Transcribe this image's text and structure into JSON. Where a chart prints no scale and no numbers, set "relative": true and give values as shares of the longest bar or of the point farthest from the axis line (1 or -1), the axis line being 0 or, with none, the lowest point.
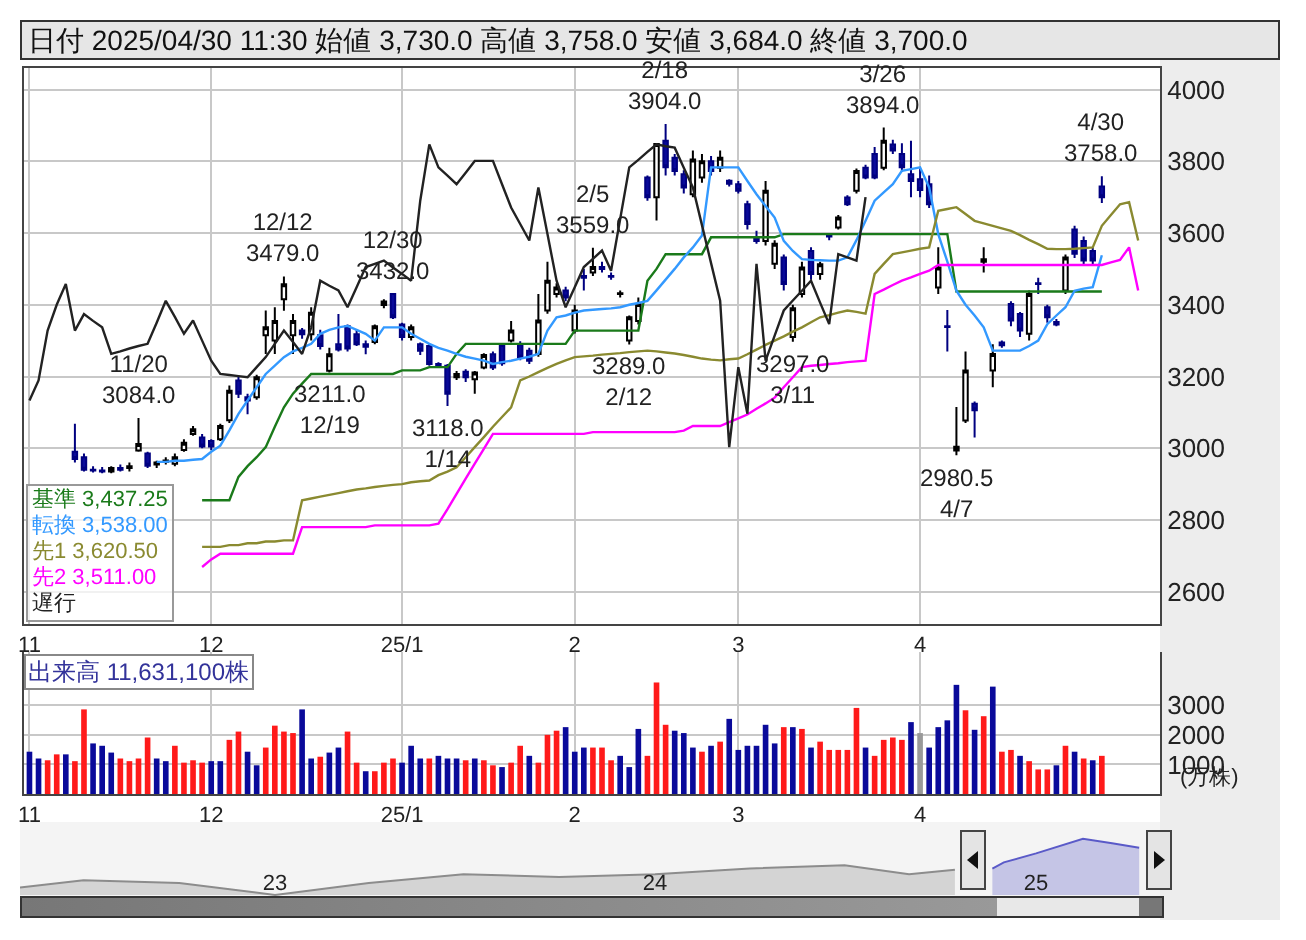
{
  "chart_data": [
    {
      "type": "candlestick",
      "title": "日付 2025/04/30 11:30 始値 3,730.0 高値 3,758.0 安値 3,684.0 終値 3,700.0",
      "categories": [
        "11",
        null,
        null,
        null,
        null,
        null,
        null,
        null,
        null,
        null,
        null,
        null,
        null,
        null,
        null,
        null,
        null,
        null,
        null,
        null,
        "12",
        null,
        null,
        null,
        null,
        null,
        null,
        null,
        null,
        null,
        null,
        null,
        null,
        null,
        null,
        null,
        null,
        null,
        null,
        null,
        null,
        "25/1",
        null,
        null,
        null,
        null,
        null,
        null,
        null,
        null,
        null,
        null,
        null,
        null,
        null,
        null,
        null,
        null,
        null,
        null,
        "2",
        null,
        null,
        null,
        null,
        null,
        null,
        null,
        null,
        null,
        null,
        null,
        null,
        null,
        null,
        null,
        null,
        null,
        "3",
        null,
        null,
        null,
        null,
        null,
        null,
        null,
        null,
        null,
        null,
        null,
        null,
        null,
        null,
        null,
        null,
        null,
        null,
        null,
        "4",
        null,
        null,
        null,
        null,
        null,
        null,
        null,
        null,
        null,
        null,
        null,
        null,
        null,
        null,
        null,
        null,
        null,
        null,
        null,
        null,
        null,
        null,
        null,
        null
      ],
      "ohlc": [
        null,
        null,
        null,
        null,
        null,
        [
          2990,
          3068,
          2960,
          2970
        ],
        [
          2975,
          2985,
          2935,
          2940
        ],
        [
          2940,
          2950,
          2932,
          2938
        ],
        [
          2938,
          2948,
          2930,
          2935
        ],
        [
          2935,
          2950,
          2930,
          2945
        ],
        [
          2945,
          2955,
          2935,
          2940
        ],
        [
          2945,
          2960,
          2935,
          2950
        ],
        [
          2994,
          3084,
          2990,
          3012
        ],
        [
          2985,
          2990,
          2945,
          2951
        ],
        [
          2955,
          2965,
          2945,
          2960
        ],
        [
          2962,
          2975,
          2955,
          2966
        ],
        [
          2957,
          2985,
          2950,
          2975
        ],
        [
          2995,
          3025,
          2990,
          3015
        ],
        [
          3040,
          3062,
          3035,
          3053
        ],
        [
          3030,
          3040,
          3000,
          3005
        ],
        [
          3020,
          3025,
          2995,
          3005
        ],
        [
          3025,
          3068,
          3020,
          3062
        ],
        [
          3078,
          3175,
          3070,
          3160
        ],
        [
          3189,
          3200,
          3140,
          3152
        ],
        [
          3142,
          3152,
          3095,
          3133
        ],
        [
          3142,
          3205,
          3135,
          3198
        ],
        [
          3315,
          3384,
          3263,
          3337
        ],
        [
          3300,
          3393,
          3263,
          3355
        ],
        [
          3415,
          3479,
          3383,
          3457
        ],
        [
          3315,
          3374,
          3263,
          3355
        ],
        [
          3328,
          3335,
          3305,
          3318
        ],
        [
          3318,
          3393,
          3300,
          3378
        ],
        [
          3315,
          3330,
          3275,
          3285
        ],
        [
          3216,
          3280,
          3211,
          3262
        ],
        [
          3290,
          3374,
          3270,
          3275
        ],
        [
          3340,
          3345,
          3270,
          3278
        ],
        [
          3318,
          3330,
          3285,
          3290
        ],
        [
          3290,
          3300,
          3262,
          3283
        ],
        [
          3296,
          3345,
          3290,
          3340
        ],
        [
          3399,
          3415,
          3390,
          3409
        ],
        [
          3430,
          3432,
          3360,
          3365
        ],
        [
          3345,
          3350,
          3300,
          3310
        ],
        [
          3310,
          3345,
          3300,
          3337
        ],
        [
          3290,
          3295,
          3260,
          3272
        ],
        [
          3285,
          3290,
          3230,
          3235
        ],
        [
          3235,
          3240,
          3225,
          3230
        ],
        [
          3230,
          3235,
          3118,
          3152
        ],
        [
          3198,
          3215,
          3190,
          3207
        ],
        [
          3213,
          3220,
          3185,
          3198
        ],
        [
          3192,
          3215,
          3152,
          3211
        ],
        [
          3225,
          3265,
          3220,
          3260
        ],
        [
          3262,
          3270,
          3218,
          3225
        ],
        [
          3285,
          3290,
          3230,
          3237
        ],
        [
          3300,
          3355,
          3295,
          3328
        ],
        [
          3290,
          3298,
          3245,
          3253
        ],
        [
          3272,
          3280,
          3235,
          3244
        ],
        [
          3263,
          3430,
          3255,
          3356
        ],
        [
          3384,
          3520,
          3375,
          3467
        ],
        [
          3430,
          3460,
          3420,
          3448
        ],
        [
          3440,
          3450,
          3410,
          3420
        ],
        [
          3328,
          3400,
          3320,
          3384
        ],
        [
          3480,
          3500,
          3440,
          3475
        ],
        [
          3490,
          3559,
          3480,
          3505
        ],
        [
          3505,
          3520,
          3490,
          3500
        ],
        [
          3480,
          3490,
          3470,
          3478
        ],
        [
          3430,
          3440,
          3420,
          3432
        ],
        [
          3300,
          3370,
          3289,
          3365
        ],
        [
          3355,
          3420,
          3345,
          3402
        ],
        [
          3755,
          3760,
          3690,
          3700
        ],
        [
          3700,
          3850,
          3635,
          3848
        ],
        [
          3857,
          3904,
          3760,
          3783
        ],
        [
          3810,
          3820,
          3760,
          3773
        ],
        [
          3764,
          3775,
          3710,
          3727
        ],
        [
          3708,
          3830,
          3700,
          3805
        ],
        [
          3755,
          3820,
          3740,
          3800
        ],
        [
          3800,
          3815,
          3760,
          3773
        ],
        [
          3782,
          3830,
          3770,
          3810
        ],
        [
          3746,
          3750,
          3730,
          3737
        ],
        [
          3736,
          3745,
          3710,
          3718
        ],
        [
          3680,
          3690,
          3610,
          3625
        ],
        [
          3588,
          3606,
          3570,
          3578
        ],
        [
          3578,
          3745,
          3565,
          3718
        ],
        [
          3514,
          3580,
          3500,
          3570
        ],
        [
          3532,
          3540,
          3440,
          3458
        ],
        [
          3310,
          3400,
          3297,
          3390
        ],
        [
          3430,
          3520,
          3420,
          3504
        ],
        [
          3550,
          3560,
          3470,
          3486
        ],
        [
          3486,
          3520,
          3470,
          3513
        ],
        [
          3594,
          3600,
          3580,
          3590
        ],
        [
          3615,
          3650,
          3610,
          3643
        ],
        [
          3699,
          3705,
          3675,
          3680
        ],
        [
          3718,
          3780,
          3710,
          3773
        ],
        [
          3782,
          3790,
          3750,
          3755
        ],
        [
          3820,
          3840,
          3750,
          3755
        ],
        [
          3782,
          3894,
          3775,
          3857
        ],
        [
          3847,
          3860,
          3820,
          3830
        ],
        [
          3820,
          3850,
          3770,
          3783
        ],
        [
          3764,
          3857,
          3700,
          3745
        ],
        [
          3750,
          3780,
          3700,
          3720
        ],
        [
          3736,
          3760,
          3670,
          3680
        ],
        [
          3448,
          3560,
          3430,
          3504
        ],
        [
          3340,
          3385,
          3270,
          3338
        ],
        [
          2994,
          3115,
          2980.5,
          3004
        ],
        [
          3077,
          3270,
          3070,
          3217
        ],
        [
          3124,
          3130,
          3030,
          3106
        ],
        [
          3520,
          3560,
          3490,
          3527
        ],
        [
          3217,
          3290,
          3170,
          3263
        ],
        [
          3295,
          3300,
          3280,
          3287
        ],
        [
          3402,
          3410,
          3340,
          3356
        ],
        [
          3374,
          3380,
          3310,
          3328
        ],
        [
          3319,
          3440,
          3300,
          3430
        ],
        [
          3460,
          3475,
          3430,
          3458
        ],
        [
          3393,
          3400,
          3350,
          3365
        ],
        [
          3352,
          3360,
          3340,
          3345
        ],
        [
          3440,
          3540,
          3430,
          3532
        ],
        [
          3610,
          3620,
          3530,
          3542
        ],
        [
          3578,
          3590,
          3510,
          3523
        ],
        [
          3550,
          3560,
          3510,
          3523
        ],
        [
          3730,
          3758,
          3684,
          3700
        ],
        null,
        null,
        null,
        null
      ],
      "series": [
        {
          "name": "基準 3,437.25",
          "type": "line",
          "color": "#1a7a1a",
          "values": [
            null,
            null,
            null,
            null,
            null,
            null,
            null,
            null,
            null,
            null,
            null,
            null,
            null,
            null,
            null,
            null,
            null,
            null,
            null,
            2855,
            2855,
            2855,
            2855,
            2920,
            2950,
            2975,
            3003,
            3060,
            3114,
            3152,
            3180,
            3207,
            3207,
            3207,
            3207,
            3207,
            3207,
            3207,
            3207,
            3207,
            3207,
            3217,
            3217,
            3217,
            3226,
            3226,
            3226,
            3263,
            3291,
            3291,
            3291,
            3291,
            3291,
            3291,
            3291,
            3291,
            3291,
            3291,
            3291,
            3291,
            3328,
            3328,
            3328,
            3328,
            3328,
            3328,
            3328,
            3328,
            3467,
            3500,
            3541,
            3541,
            3541,
            3541,
            3541,
            3588,
            3588,
            3588,
            3588,
            3588,
            3588,
            3588,
            3588,
            3597,
            3597,
            3597,
            3597,
            3597,
            3597,
            3597,
            3597,
            3597,
            3597,
            3597,
            3597,
            3597,
            3597,
            3597,
            3597,
            3597,
            3597,
            3597,
            3437,
            3437,
            3437,
            3437,
            3437,
            3437,
            3437,
            3437,
            3437,
            3437,
            3437,
            3437,
            3437,
            3437,
            3437,
            3437,
            3437,
            null,
            null,
            null,
            null
          ]
        },
        {
          "name": "転換 3,538.00",
          "type": "line",
          "color": "#3399ff",
          "values": [
            null,
            null,
            null,
            null,
            null,
            null,
            null,
            null,
            null,
            null,
            null,
            null,
            null,
            null,
            2962,
            2962,
            2965,
            2965,
            2968,
            2970,
            2990,
            3007,
            3050,
            3096,
            3133,
            3170,
            3207,
            3230,
            3254,
            3270,
            3280,
            3291,
            3319,
            3330,
            3337,
            3341,
            3330,
            3319,
            3300,
            3337,
            3337,
            3337,
            3319,
            3305,
            3291,
            3280,
            3272,
            3263,
            3255,
            3250,
            3244,
            3235,
            3240,
            3244,
            3250,
            3255,
            3263,
            3328,
            3365,
            3370,
            3378,
            3384,
            3386,
            3388,
            3390,
            3393,
            3400,
            3405,
            3411,
            3440,
            3470,
            3500,
            3532,
            3560,
            3593,
            3783,
            3783,
            3783,
            3783,
            3745,
            3708,
            3675,
            3643,
            3578,
            3550,
            3527,
            3525,
            3524,
            3523,
            3523,
            3532,
            3580,
            3634,
            3690,
            3713,
            3736,
            3773,
            3778,
            3783,
            3727,
            3597,
            3520,
            3439,
            3400,
            3370,
            3337,
            3272,
            3272,
            3272,
            3272,
            3285,
            3300,
            3346,
            3370,
            3393,
            3439,
            3445,
            3449,
            3538,
            null,
            null,
            null,
            null
          ]
        },
        {
          "name": "先1 3,620.50",
          "type": "line",
          "color": "#8a8a30",
          "values": [
            null,
            null,
            null,
            null,
            null,
            null,
            null,
            null,
            null,
            null,
            null,
            null,
            null,
            null,
            null,
            null,
            null,
            null,
            null,
            2725,
            2725,
            2725,
            2730,
            2730,
            2735,
            2735,
            2740,
            2740,
            2743,
            2743,
            2855,
            2860,
            2865,
            2870,
            2875,
            2880,
            2885,
            2888,
            2892,
            2895,
            2898,
            2900,
            2905,
            2908,
            2910,
            2925,
            2935,
            2947,
            2975,
            3003,
            3031,
            3060,
            3087,
            3114,
            3189,
            3200,
            3212,
            3224,
            3235,
            3245,
            3254,
            3256,
            3258,
            3261,
            3263,
            3265,
            3268,
            3270,
            3272,
            3270,
            3267,
            3264,
            3260,
            3255,
            3250,
            3247,
            3245,
            3248,
            3250,
            3262,
            3275,
            3288,
            3300,
            3312,
            3325,
            3337,
            3351,
            3365,
            3371,
            3378,
            3384,
            3380,
            3375,
            3486,
            3514,
            3541,
            3546,
            3551,
            3556,
            3560,
            3662,
            3667,
            3672,
            3653,
            3634,
            3627,
            3620,
            3613,
            3606,
            3594,
            3581,
            3569,
            3556,
            3555,
            3555,
            3556,
            3558,
            3560,
            3620,
            3650,
            3680,
            3686,
            3579
          ]
        },
        {
          "name": "先2 3,511.00",
          "type": "line",
          "color": "#ff00ff",
          "values": [
            null,
            null,
            null,
            null,
            null,
            null,
            null,
            null,
            null,
            null,
            null,
            null,
            null,
            null,
            null,
            null,
            null,
            null,
            null,
            2669,
            2690,
            2706,
            2706,
            2706,
            2706,
            2706,
            2706,
            2706,
            2706,
            2706,
            2780,
            2780,
            2780,
            2780,
            2780,
            2780,
            2780,
            2780,
            2785,
            2785,
            2785,
            2785,
            2785,
            2785,
            2785,
            2790,
            2830,
            2873,
            2915,
            2957,
            2998,
            3040,
            3040,
            3040,
            3040,
            3040,
            3040,
            3040,
            3040,
            3040,
            3040,
            3040,
            3045,
            3045,
            3045,
            3045,
            3045,
            3045,
            3045,
            3045,
            3045,
            3045,
            3049,
            3062,
            3062,
            3062,
            3062,
            3073,
            3083,
            3094,
            3110,
            3125,
            3141,
            3170,
            3198,
            3226,
            3230,
            3232,
            3235,
            3237,
            3240,
            3242,
            3244,
            3430,
            3442,
            3455,
            3467,
            3476,
            3486,
            3495,
            3511,
            3511,
            3511,
            3511,
            3511,
            3511,
            3511,
            3511,
            3511,
            3511,
            3511,
            3511,
            3511,
            3511,
            3511,
            3511,
            3511,
            3511,
            3511,
            3518,
            3525,
            3560,
            3440
          ]
        },
        {
          "name": "遅行",
          "type": "line",
          "color": "#222222",
          "values": [
            3133,
            3189,
            3328,
            3400,
            3458,
            3328,
            3374,
            3355,
            3337,
            3263,
            3270,
            3278,
            3285,
            3291,
            3350,
            3411,
            3366,
            3319,
            3356,
            3300,
            3244,
            3207,
            3204,
            3201,
            3198,
            3226,
            3254,
            3291,
            3328,
            3296,
            3263,
            3337,
            3467,
            3453,
            3440,
            3393,
            3449,
            3505,
            3514,
            3523,
            3504,
            3486,
            3467,
            3690,
            3847,
            3783,
            3760,
            3736,
            3768,
            3801,
            3801,
            3801,
            3736,
            3671,
            3625,
            3579,
            3727,
            3597,
            3467,
            3393,
            3449,
            3505,
            3528,
            3551,
            3495,
            3639,
            3783,
            3804,
            3826,
            3847,
            3842,
            3838,
            3782,
            3727,
            3622,
            3516,
            3411,
            3003,
            3226,
            3096,
            3514,
            3244,
            3314,
            3384,
            3412,
            3439,
            3467,
            3406,
            3346,
            3541,
            3532,
            3523,
            3700,
            null,
            null,
            null,
            null,
            null,
            null,
            null,
            null,
            null,
            null,
            null,
            null,
            null,
            null,
            null,
            null,
            null,
            null,
            null,
            null,
            null,
            null,
            null,
            null,
            null,
            null,
            null,
            null,
            null,
            null
          ]
        }
      ],
      "ylim": [
        2510,
        4060
      ],
      "yticks": [
        2600,
        2800,
        3000,
        3200,
        3400,
        3600,
        3800,
        4000
      ],
      "grid": true,
      "annotations": [
        {
          "text": "11/20\n3084.0",
          "y": 3084
        },
        {
          "text": "12/12\n3479.0",
          "y": 3479
        },
        {
          "text": "3211.0\n12/19",
          "y": 3211
        },
        {
          "text": "12/30\n3432.0",
          "y": 3432
        },
        {
          "text": "3118.0\n1/14",
          "y": 3118
        },
        {
          "text": "2/5\n3559.0",
          "y": 3559
        },
        {
          "text": "3289.0\n2/12",
          "y": 3289
        },
        {
          "text": "2/18\n3904.0",
          "y": 3904
        },
        {
          "text": "3297.0\n3/11",
          "y": 3297
        },
        {
          "text": "3/26\n3894.0",
          "y": 3894
        },
        {
          "text": "2980.5\n4/7",
          "y": 2980.5
        },
        {
          "text": "4/30\n3758.0",
          "y": 3758
        }
      ]
    },
    {
      "type": "bar",
      "categories": [
        "11",
        null,
        null,
        null,
        null,
        null,
        null,
        null,
        null,
        null,
        null,
        null,
        null,
        null,
        null,
        null,
        null,
        null,
        null,
        null,
        "12",
        null,
        null,
        null,
        null,
        null,
        null,
        null,
        null,
        null,
        null,
        null,
        null,
        null,
        null,
        null,
        null,
        null,
        null,
        null,
        null,
        "25/1",
        null,
        null,
        null,
        null,
        null,
        null,
        null,
        null,
        null,
        null,
        null,
        null,
        null,
        null,
        null,
        null,
        null,
        null,
        "2",
        null,
        null,
        null,
        null,
        null,
        null,
        null,
        null,
        null,
        null,
        null,
        null,
        null,
        null,
        null,
        null,
        null,
        "3",
        null,
        null,
        null,
        null,
        null,
        null,
        null,
        null,
        null,
        null,
        null,
        null,
        null,
        null,
        null,
        null,
        null,
        null,
        null,
        "4",
        null,
        null,
        null,
        null,
        null,
        null,
        null,
        null,
        null,
        null,
        null,
        null,
        null,
        null,
        null,
        null,
        null,
        null,
        null,
        null,
        null,
        null,
        null,
        null
      ],
      "values": [
        1430,
        1200,
        1140,
        1340,
        1340,
        1110,
        2860,
        1710,
        1630,
        1400,
        1200,
        1110,
        1200,
        1910,
        1200,
        1110,
        1630,
        1060,
        1140,
        1060,
        1110,
        1110,
        1830,
        2110,
        1430,
        970,
        1570,
        2310,
        2110,
        2060,
        2860,
        1200,
        1260,
        1400,
        1570,
        2110,
        1060,
        770,
        770,
        1060,
        1200,
        1060,
        1630,
        1200,
        1200,
        1290,
        1200,
        1200,
        1140,
        1200,
        1140,
        970,
        910,
        1060,
        1630,
        1290,
        1060,
        2000,
        2140,
        2260,
        1430,
        1570,
        1570,
        1570,
        1140,
        1290,
        910,
        2200,
        1290,
        3770,
        2340,
        2140,
        2060,
        1570,
        1430,
        1630,
        1770,
        2540,
        1490,
        1630,
        1630,
        2340,
        1710,
        2260,
        2260,
        2200,
        1570,
        1770,
        1490,
        1490,
        1490,
        2910,
        1570,
        1290,
        1830,
        1910,
        1830,
        2430,
        2060,
        1570,
        2260,
        2490,
        3690,
        2830,
        2170,
        2630,
        3630,
        1430,
        1490,
        1290,
        1110,
        830,
        830,
        970,
        1630,
        1430,
        1200,
        1140,
        1290,
        null,
        null,
        null,
        null
      ],
      "colors": [
        "#0a0a9a",
        "#0a0a9a",
        "#ff1a1a",
        "#ff1a1a",
        "#0a0a9a",
        "#ff1a1a",
        "#ff1a1a",
        "#0a0a9a",
        "#0a0a9a",
        "#0a0a9a",
        "#ff1a1a",
        "#ff1a1a",
        "#ff1a1a",
        "#ff1a1a",
        "#0a0a9a",
        "#0a0a9a",
        "#ff1a1a",
        "#ff1a1a",
        "#ff1a1a",
        "#ff1a1a",
        "#0a0a9a",
        "#0a0a9a",
        "#ff1a1a",
        "#ff1a1a",
        "#0a0a9a",
        "#0a0a9a",
        "#ff1a1a",
        "#ff1a1a",
        "#ff1a1a",
        "#ff1a1a",
        "#0a0a9a",
        "#0a0a9a",
        "#ff1a1a",
        "#0a0a9a",
        "#0a0a9a",
        "#ff1a1a",
        "#ff1a1a",
        "#0a0a9a",
        "#ff1a1a",
        "#ff1a1a",
        "#ff1a1a",
        "#0a0a9a",
        "#0a0a9a",
        "#0a0a9a",
        "#ff1a1a",
        "#0a0a9a",
        "#0a0a9a",
        "#0a0a9a",
        "#ff1a1a",
        "#0a0a9a",
        "#ff1a1a",
        "#ff1a1a",
        "#0a0a9a",
        "#ff1a1a",
        "#ff1a1a",
        "#0a0a9a",
        "#ff1a1a",
        "#ff1a1a",
        "#ff1a1a",
        "#0a0a9a",
        "#0a0a9a",
        "#0a0a9a",
        "#ff1a1a",
        "#ff1a1a",
        "#ff1a1a",
        "#0a0a9a",
        "#0a0a9a",
        "#0a0a9a",
        "#ff1a1a",
        "#ff1a1a",
        "#ff1a1a",
        "#0a0a9a",
        "#0a0a9a",
        "#0a0a9a",
        "#ff1a1a",
        "#0a0a9a",
        "#ff1a1a",
        "#0a0a9a",
        "#0a0a9a",
        "#0a0a9a",
        "#0a0a9a",
        "#0a0a9a",
        "#0a0a9a",
        "#ff1a1a",
        "#0a0a9a",
        "#ff1a1a",
        "#0a0a9a",
        "#ff1a1a",
        "#ff1a1a",
        "#ff1a1a",
        "#ff1a1a",
        "#ff1a1a",
        "#0a0a9a",
        "#ff1a1a",
        "#ff1a1a",
        "#ff1a1a",
        "#ff1a1a",
        "#0a0a9a",
        "#999999",
        "#0a0a9a",
        "#0a0a9a",
        "#0a0a9a",
        "#0a0a9a",
        "#ff1a1a",
        "#0a0a9a",
        "#ff1a1a",
        "#0a0a9a",
        "#ff1a1a",
        "#ff1a1a",
        "#0a0a9a",
        "#ff1a1a",
        "#ff1a1a",
        "#ff1a1a",
        "#0a0a9a",
        "#ff1a1a",
        "#0a0a9a",
        "#ff1a1a",
        "#0a0a9a",
        "#ff1a1a",
        null,
        null,
        null,
        null
      ],
      "ylabel": "(万株)",
      "ylim": [
        0,
        4800
      ],
      "yticks": [
        1000,
        2000,
        3000
      ],
      "grid": true,
      "annotations": [
        "出来高 11,631,100株"
      ]
    },
    {
      "type": "area",
      "relative": true,
      "series": [
        {
          "color": "#8c8c8c",
          "x": [
            "2022-05-01",
            "2022-07-01",
            "2022-10-01",
            "2023-01-01",
            "2023-04-01",
            "2023-07-01",
            "2023-10-01",
            "2024-01-01",
            "2024-04-01",
            "2024-07-01",
            "2024-09-01",
            "2024-10-15"
          ],
          "values": [
            0.13,
            0.26,
            0.21,
            0,
            0.21,
            0.37,
            0.32,
            0.37,
            0.47,
            0.53,
            0.37,
            0.45
          ]
        },
        {
          "color": "#5a5ac8",
          "x": [
            "2024-11-20",
            "2024-12-01",
            "2025-01-01",
            "2025-02-15",
            "2025-03-15",
            "2025-04-10"
          ],
          "values": [
            0.47,
            0.58,
            0.74,
            1,
            0.92,
            0.84
          ]
        }
      ],
      "xlim": [
        "2022-05-01",
        "2025-04-30"
      ],
      "xticks": [
        {
          "value": "2023-01-01",
          "label": "23"
        },
        {
          "value": "2024-01-01",
          "label": "24"
        },
        {
          "value": "2025-01-01",
          "label": "25"
        }
      ]
    }
  ]
}
